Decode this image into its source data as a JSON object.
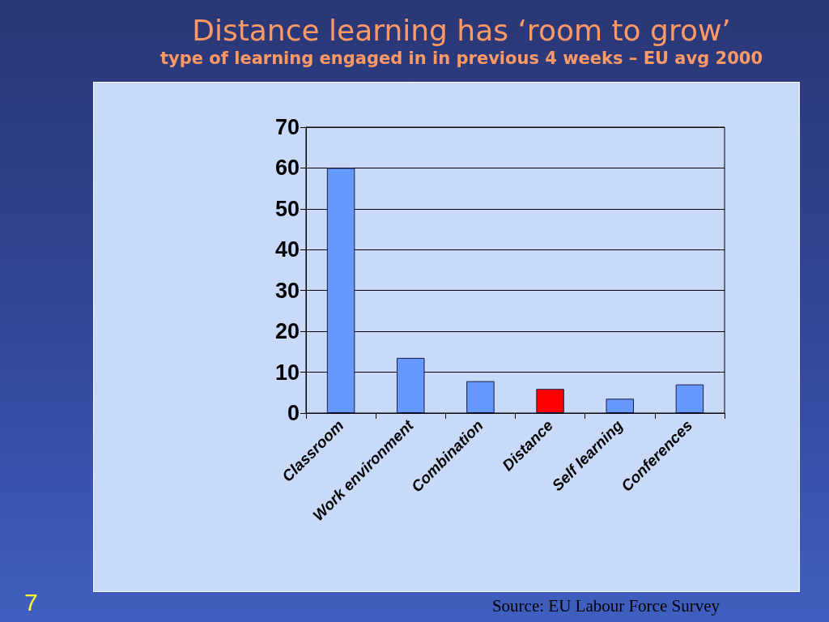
{
  "chart_data": {
    "type": "bar",
    "title": "Distance learning has ‘room to grow’",
    "subtitle": "type of learning engaged in in previous 4 weeks – EU avg 2000",
    "categories": [
      "Classroom",
      "Work environment",
      "Combination",
      "Distance",
      "Self learning",
      "Conferences"
    ],
    "values": [
      60,
      13.5,
      7.8,
      5.9,
      3.5,
      7.0
    ],
    "colors": [
      "#6699ff",
      "#6699ff",
      "#6699ff",
      "#ff0000",
      "#6699ff",
      "#6699ff"
    ],
    "ylim": [
      0,
      70
    ],
    "yticks": [
      0,
      10,
      20,
      30,
      40,
      50,
      60,
      70
    ],
    "grid": "y",
    "annotations": [
      "Source: EU Labour Force Survey",
      "7"
    ]
  }
}
